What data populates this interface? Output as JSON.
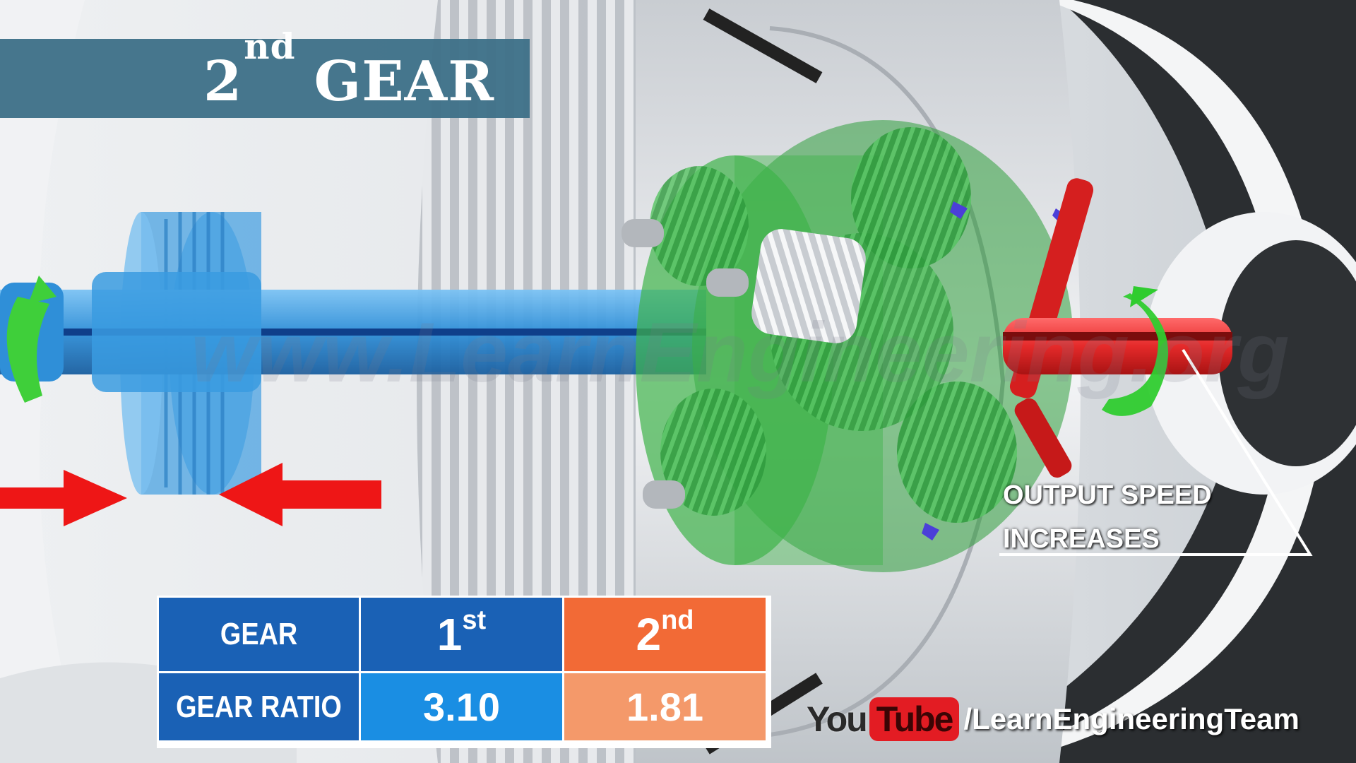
{
  "title": {
    "main": "GEAR",
    "ordinal": "2",
    "ordinal_suffix": "nd"
  },
  "gear_table": {
    "header_label": "GEAR",
    "first_gear": {
      "label": "1",
      "suffix": "st",
      "ratio": "3.10"
    },
    "second_gear": {
      "label": "2",
      "suffix": "nd",
      "ratio": "1.81"
    },
    "ratio_label": "GEAR RATIO"
  },
  "annotation": {
    "line1": "OUTPUT SPEED",
    "line2": "INCREASES"
  },
  "branding": {
    "you": "You",
    "tube": "Tube",
    "handle": "/LearnEngineeringTeam"
  },
  "watermark": "www.LearnEngineering.org",
  "colors": {
    "carrier_green": "#3fb34a",
    "shaft_blue": "#2f8fd8",
    "output_red": "#e52a2a",
    "table_header_blue": "#1a61b5",
    "table_value_blue": "#1a8ee3",
    "table_header_orange": "#f26a36",
    "table_value_orange": "#f4996a",
    "title_bar": "#3e7088"
  }
}
